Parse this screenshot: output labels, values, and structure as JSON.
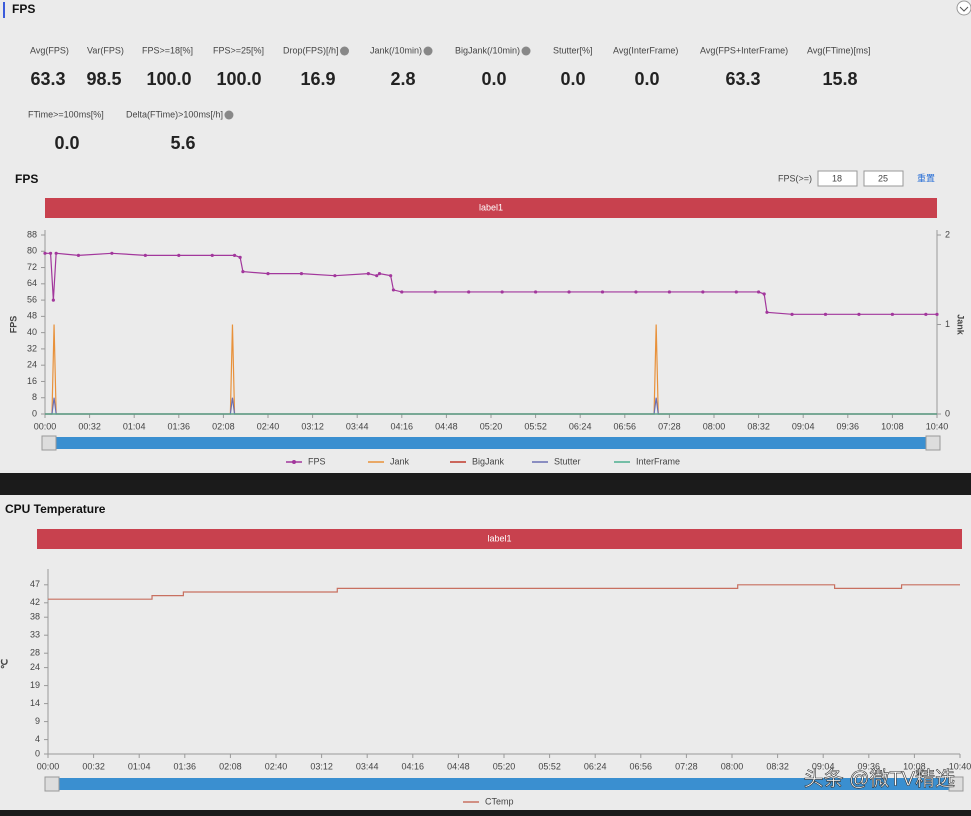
{
  "header": {
    "title": "FPS"
  },
  "stats": [
    {
      "label": "Avg(FPS)",
      "value": "63.3"
    },
    {
      "label": "Var(FPS)",
      "value": "98.5"
    },
    {
      "label": "FPS>=18[%]",
      "value": "100.0"
    },
    {
      "label": "FPS>=25[%]",
      "value": "100.0"
    },
    {
      "label": "Drop(FPS)[/h]",
      "value": "16.9",
      "help": true
    },
    {
      "label": "Jank(/10min)",
      "value": "2.8",
      "help": true
    },
    {
      "label": "BigJank(/10min)",
      "value": "0.0",
      "help": true
    },
    {
      "label": "Stutter[%]",
      "value": "0.0"
    },
    {
      "label": "Avg(InterFrame)",
      "value": "0.0"
    },
    {
      "label": "Avg(FPS+InterFrame)",
      "value": "63.3"
    },
    {
      "label": "Avg(FTime)[ms]",
      "value": "15.8"
    },
    {
      "label": "FTime>=100ms[%]",
      "value": "0.0"
    },
    {
      "label": "Delta(FTime)>100ms[/h]",
      "value": "5.6",
      "help": true
    }
  ],
  "fps_controls": {
    "label": "FPS(>=)",
    "inputs": [
      "18",
      "25"
    ],
    "reset": "重置"
  },
  "chart_data": [
    {
      "type": "line",
      "title": "FPS",
      "band_label": "label1",
      "ylabel": "FPS",
      "y2label": "Jank",
      "xlim": [
        0,
        640
      ],
      "xticks": [
        {
          "value": 0,
          "label": "00:00"
        },
        {
          "value": 32,
          "label": "00:32"
        },
        {
          "value": 64,
          "label": "01:04"
        },
        {
          "value": 96,
          "label": "01:36"
        },
        {
          "value": 128,
          "label": "02:08"
        },
        {
          "value": 160,
          "label": "02:40"
        },
        {
          "value": 192,
          "label": "03:12"
        },
        {
          "value": 224,
          "label": "03:44"
        },
        {
          "value": 256,
          "label": "04:16"
        },
        {
          "value": 288,
          "label": "04:48"
        },
        {
          "value": 320,
          "label": "05:20"
        },
        {
          "value": 352,
          "label": "05:52"
        },
        {
          "value": 384,
          "label": "06:24"
        },
        {
          "value": 416,
          "label": "06:56"
        },
        {
          "value": 448,
          "label": "07:28"
        },
        {
          "value": 480,
          "label": "08:00"
        },
        {
          "value": 512,
          "label": "08:32"
        },
        {
          "value": 544,
          "label": "09:04"
        },
        {
          "value": 576,
          "label": "09:36"
        },
        {
          "value": 608,
          "label": "10:08"
        },
        {
          "value": 640,
          "label": "10:40"
        }
      ],
      "ylim": [
        0,
        88
      ],
      "yticks": [
        0,
        8,
        16,
        24,
        32,
        40,
        48,
        56,
        64,
        72,
        80,
        88
      ],
      "y2lim": [
        0,
        2
      ],
      "y2ticks": [
        0,
        1,
        2
      ],
      "series": [
        {
          "name": "FPS",
          "color": "#a2379c",
          "markers": true,
          "x": [
            0,
            4,
            6,
            8,
            24,
            48,
            72,
            96,
            120,
            136,
            140,
            142,
            160,
            184,
            208,
            232,
            238,
            240,
            248,
            250,
            256,
            280,
            304,
            328,
            352,
            376,
            400,
            424,
            448,
            472,
            496,
            512,
            516,
            518,
            536,
            560,
            584,
            608,
            632,
            640
          ],
          "values": [
            79,
            79,
            56,
            79,
            78,
            79,
            78,
            78,
            78,
            78,
            77,
            70,
            69,
            69,
            68,
            69,
            68,
            69,
            68,
            61,
            60,
            60,
            60,
            60,
            60,
            60,
            60,
            60,
            60,
            60,
            60,
            60,
            59,
            50,
            49,
            49,
            49,
            49,
            49,
            49
          ]
        },
        {
          "name": "Jank",
          "color": "#e8913a",
          "axis": "y2",
          "x": [
            0,
            5,
            6.5,
            8,
            133,
            134.5,
            136,
            437,
            438.5,
            440,
            640
          ],
          "values": [
            0,
            0,
            1,
            0,
            0,
            1,
            0,
            0,
            1,
            0,
            0
          ]
        },
        {
          "name": "BigJank",
          "color": "#c0392b",
          "x": [
            0,
            640
          ],
          "values": [
            0,
            0
          ]
        },
        {
          "name": "Stutter",
          "color": "#6a6fb3",
          "x": [
            0,
            5,
            6.5,
            8,
            133,
            134.5,
            136,
            437,
            438.5,
            440,
            640
          ],
          "values": [
            0,
            0,
            8,
            0,
            0,
            8,
            0,
            0,
            8,
            0,
            0
          ]
        },
        {
          "name": "InterFrame",
          "color": "#4cae8f",
          "x": [
            0,
            640
          ],
          "values": [
            0,
            0
          ]
        }
      ]
    },
    {
      "type": "line",
      "title": "CPU Temperature",
      "band_label": "label1",
      "ylabel": "℃",
      "xlim": [
        0,
        640
      ],
      "xticks": [
        {
          "value": 0,
          "label": "00:00"
        },
        {
          "value": 32,
          "label": "00:32"
        },
        {
          "value": 64,
          "label": "01:04"
        },
        {
          "value": 96,
          "label": "01:36"
        },
        {
          "value": 128,
          "label": "02:08"
        },
        {
          "value": 160,
          "label": "02:40"
        },
        {
          "value": 192,
          "label": "03:12"
        },
        {
          "value": 224,
          "label": "03:44"
        },
        {
          "value": 256,
          "label": "04:16"
        },
        {
          "value": 288,
          "label": "04:48"
        },
        {
          "value": 320,
          "label": "05:20"
        },
        {
          "value": 352,
          "label": "05:52"
        },
        {
          "value": 384,
          "label": "06:24"
        },
        {
          "value": 416,
          "label": "06:56"
        },
        {
          "value": 448,
          "label": "07:28"
        },
        {
          "value": 480,
          "label": "08:00"
        },
        {
          "value": 512,
          "label": "08:32"
        },
        {
          "value": 544,
          "label": "09:04"
        },
        {
          "value": 576,
          "label": "09:36"
        },
        {
          "value": 608,
          "label": "10:08"
        },
        {
          "value": 640,
          "label": "10:40"
        }
      ],
      "ylim": [
        0,
        50
      ],
      "yticks": [
        0,
        4,
        9,
        14,
        19,
        24,
        28,
        33,
        38,
        42,
        47
      ],
      "series": [
        {
          "name": "CTemp",
          "color": "#c87060",
          "x": [
            0,
            73,
            73,
            95,
            95,
            203,
            203,
            484,
            484,
            552,
            552,
            599,
            599,
            640
          ],
          "values": [
            43,
            43,
            44,
            44,
            45,
            45,
            46,
            46,
            47,
            47,
            46,
            46,
            47,
            47
          ]
        }
      ]
    }
  ],
  "watermark": "头条 @微TV精选"
}
